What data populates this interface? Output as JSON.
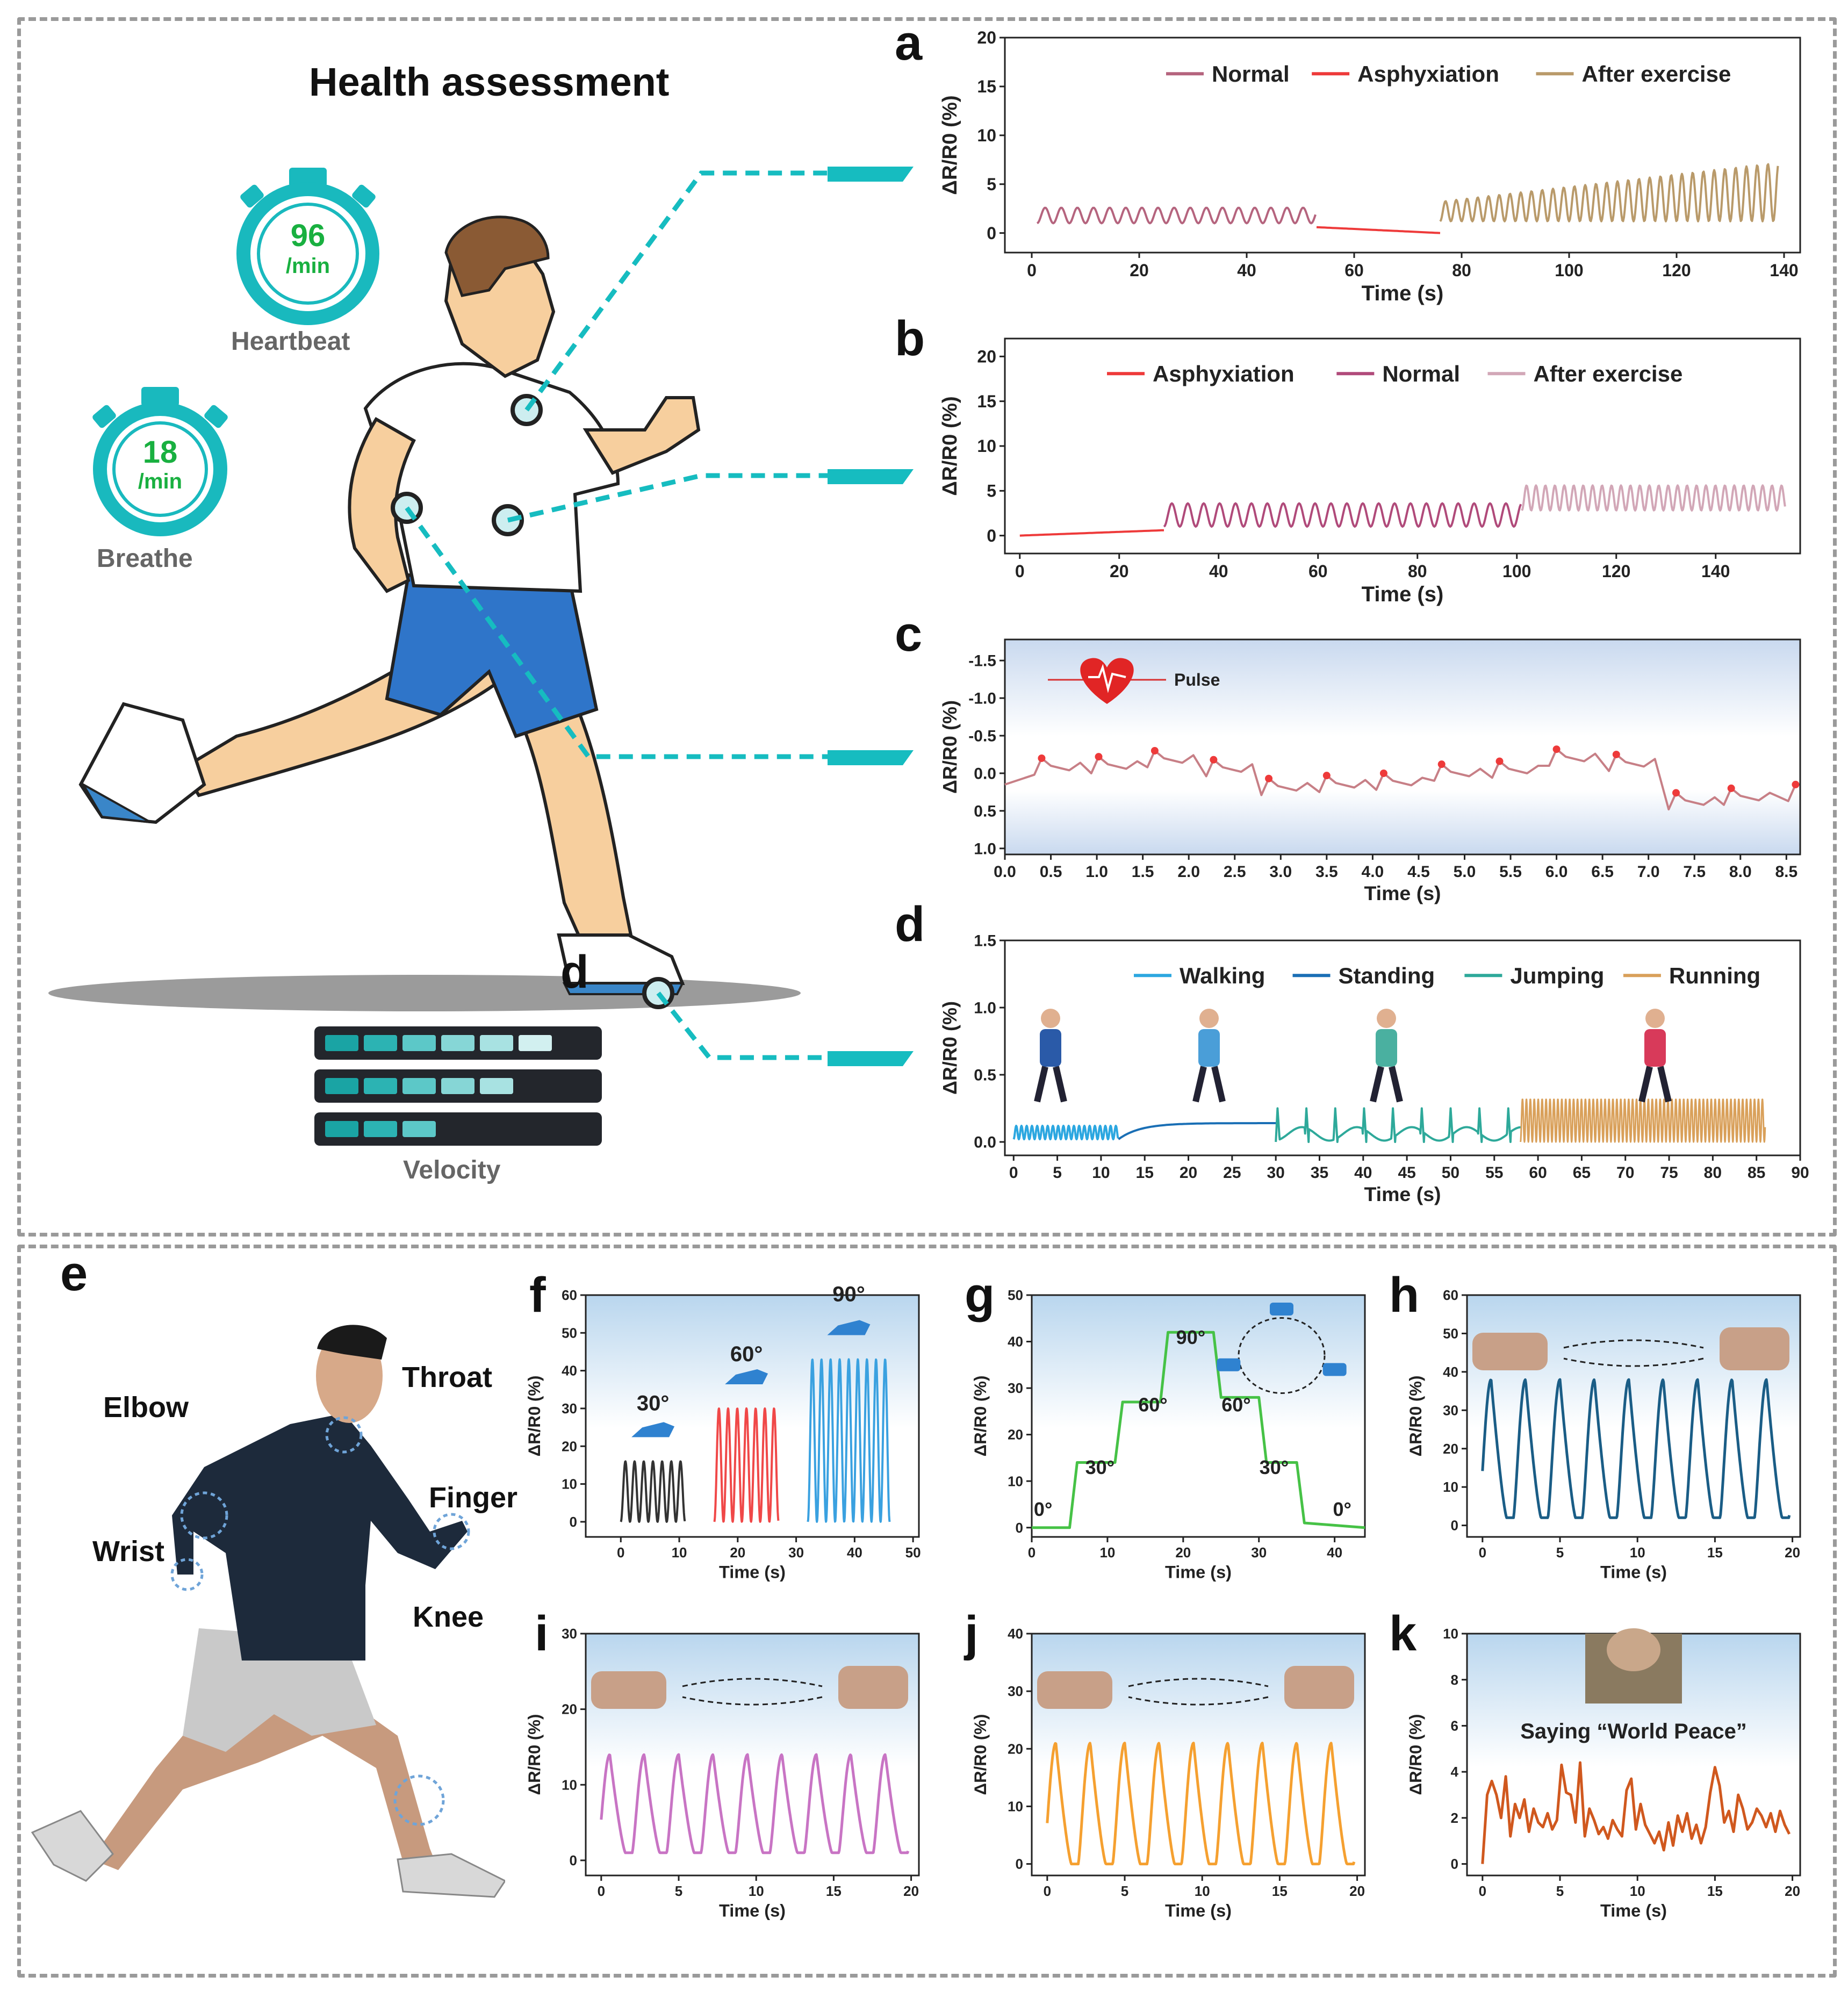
{
  "panel_letters": [
    "a",
    "b",
    "c",
    "d",
    "e",
    "f",
    "g",
    "h",
    "i",
    "j",
    "k"
  ],
  "top_illustration": {
    "title": "Health assessment",
    "heartbeat": {
      "value": "96",
      "unit": "/min",
      "label": "Heartbeat"
    },
    "breathe": {
      "value": "18",
      "unit": "/min",
      "label": "Breathe"
    },
    "velocity_label": "Velocity",
    "foot_marker": "d",
    "velocity_bars": [
      6,
      5,
      3
    ]
  },
  "body_parts": {
    "elbow": "Elbow",
    "throat": "Throat",
    "finger": "Finger",
    "wrist": "Wrist",
    "knee": "Knee"
  },
  "colors": {
    "normal": "#b5647e",
    "asphyxiation": "#ee3a3a",
    "after_exercise": "#b99a6a",
    "normal_b": "#b04a7a",
    "after_exercise_b": "#d2a7b7",
    "teal": "#16bcc0",
    "walking": "#2ca7e0",
    "standing": "#1a6fb5",
    "jumping": "#2ea99a",
    "running": "#d9a05a"
  },
  "chart_data": [
    {
      "id": "a",
      "type": "line",
      "xlabel": "Time (s)",
      "ylabel": "ΔR/R0 (%)",
      "xlim": [
        -5,
        143
      ],
      "ylim": [
        -2,
        20
      ],
      "xticks": [
        "0",
        "20",
        "40",
        "60",
        "80",
        "100",
        "120",
        "140"
      ],
      "yticks": [
        "0",
        "5",
        "10",
        "15",
        "20"
      ],
      "legend": [
        "Normal",
        "Asphyxiation",
        "After exercise"
      ],
      "series": [
        {
          "name": "Normal",
          "segment": [
            1,
            53
          ],
          "baseline": 1.0,
          "amplitude": 1.6,
          "period": 3.0
        },
        {
          "name": "Asphyxiation",
          "segment": [
            53,
            76
          ],
          "start": 0.6,
          "end": 0.0
        },
        {
          "name": "After exercise",
          "segment": [
            76,
            139
          ],
          "baseline": 1.2,
          "amplitude_start": 2.0,
          "amplitude_end": 6.0,
          "period": 2.0
        }
      ]
    },
    {
      "id": "b",
      "type": "line",
      "xlabel": "Time (s)",
      "ylabel": "ΔR/R0 (%)",
      "xlim": [
        -3,
        157
      ],
      "ylim": [
        -2,
        22
      ],
      "xticks": [
        "0",
        "20",
        "40",
        "60",
        "80",
        "100",
        "120",
        "140"
      ],
      "yticks": [
        "0",
        "5",
        "10",
        "15",
        "20"
      ],
      "legend": [
        "Asphyxiation",
        "Normal",
        "After exercise"
      ],
      "series": [
        {
          "name": "Asphyxiation",
          "segment": [
            0,
            29
          ],
          "start": 0.0,
          "end": 0.6
        },
        {
          "name": "Normal",
          "segment": [
            29,
            101
          ],
          "baseline": 1.0,
          "amplitude": 2.6,
          "period": 3.2
        },
        {
          "name": "After exercise",
          "segment": [
            101,
            154
          ],
          "baseline": 2.8,
          "amplitude": 2.8,
          "period": 1.9
        }
      ]
    },
    {
      "id": "c",
      "type": "line",
      "xlabel": "Time (s)",
      "ylabel": "ΔR/R0 (%)",
      "legend": [
        "Pulse"
      ],
      "xlim": [
        0,
        8.65
      ],
      "ylim": [
        1.08,
        -1.78
      ],
      "xticks": [
        "0.0",
        "0.5",
        "1.0",
        "1.5",
        "2.0",
        "2.5",
        "3.0",
        "3.5",
        "4.0",
        "4.5",
        "5.0",
        "5.5",
        "6.0",
        "6.5",
        "7.0",
        "7.5",
        "8.0",
        "8.5"
      ],
      "yticks": [
        "-1.5",
        "-1.0",
        "-0.5",
        "0.0",
        "0.5",
        "1.0"
      ],
      "peaks": [
        [
          0.4,
          -0.2
        ],
        [
          1.02,
          -0.22
        ],
        [
          1.63,
          -0.3
        ],
        [
          2.27,
          -0.18
        ],
        [
          2.87,
          0.07
        ],
        [
          3.5,
          0.03
        ],
        [
          4.12,
          0.0
        ],
        [
          4.75,
          -0.12
        ],
        [
          5.38,
          -0.16
        ],
        [
          6.0,
          -0.32
        ],
        [
          6.65,
          -0.25
        ],
        [
          7.3,
          0.26
        ],
        [
          7.9,
          0.2
        ],
        [
          8.6,
          0.15
        ]
      ]
    },
    {
      "id": "d",
      "type": "line",
      "xlabel": "Time (s)",
      "ylabel": "ΔR/R0 (%)",
      "xlim": [
        -1,
        90
      ],
      "ylim": [
        -0.1,
        1.5
      ],
      "xticks": [
        "0",
        "5",
        "10",
        "15",
        "20",
        "25",
        "30",
        "35",
        "40",
        "45",
        "50",
        "55",
        "60",
        "65",
        "70",
        "75",
        "80",
        "85",
        "90"
      ],
      "yticks": [
        "0.0",
        "0.5",
        "1.0",
        "1.5"
      ],
      "legend": [
        "Walking",
        "Standing",
        "Jumping",
        "Running"
      ],
      "series": [
        {
          "name": "Walking",
          "segment": [
            0,
            12
          ],
          "baseline": 0.02,
          "amplitude": 0.1,
          "period": 0.6
        },
        {
          "name": "Standing",
          "segment": [
            12,
            30
          ],
          "start": 0.02,
          "end": 0.14
        },
        {
          "name": "Jumping",
          "segment": [
            30,
            58
          ],
          "baseline": 0.0,
          "amplitude": 0.25,
          "period": 3.3
        },
        {
          "name": "Running",
          "segment": [
            58,
            86
          ],
          "baseline": 0.0,
          "amplitude": 0.32,
          "period": 0.45
        }
      ]
    },
    {
      "id": "f",
      "type": "line",
      "xlabel": "Time (s)",
      "ylabel": "ΔR/R0 (%)",
      "xlim": [
        -6,
        51
      ],
      "ylim": [
        -4,
        60
      ],
      "xticks": [
        "0",
        "10",
        "20",
        "30",
        "40",
        "50"
      ],
      "yticks": [
        "0",
        "10",
        "20",
        "30",
        "40",
        "50",
        "60"
      ],
      "annotations": [
        "30°",
        "60°",
        "90°"
      ],
      "series": [
        {
          "name": "30°",
          "segment": [
            0,
            11
          ],
          "amplitude": 16,
          "cycles": 7,
          "color": "#333333"
        },
        {
          "name": "60°",
          "segment": [
            16,
            27
          ],
          "amplitude": 30,
          "cycles": 7,
          "color": "#f04848"
        },
        {
          "name": "90°",
          "segment": [
            32,
            46
          ],
          "amplitude": 43,
          "cycles": 9,
          "color": "#3aa1e0"
        }
      ]
    },
    {
      "id": "g",
      "type": "line",
      "xlabel": "Time (s)",
      "ylabel": "ΔR/R0 (%)",
      "xlim": [
        0,
        44
      ],
      "ylim": [
        -2,
        50
      ],
      "xticks": [
        "0",
        "10",
        "20",
        "30",
        "40"
      ],
      "yticks": [
        "0",
        "10",
        "20",
        "30",
        "40",
        "50"
      ],
      "annotations": [
        "0°",
        "30°",
        "60°",
        "90°",
        "60°",
        "30°",
        "0°"
      ],
      "steps": [
        [
          0,
          0
        ],
        [
          5,
          0
        ],
        [
          6,
          14
        ],
        [
          11,
          14
        ],
        [
          12,
          27
        ],
        [
          17,
          27
        ],
        [
          18,
          42
        ],
        [
          24,
          42
        ],
        [
          25,
          28
        ],
        [
          30,
          28
        ],
        [
          31,
          14
        ],
        [
          35,
          14
        ],
        [
          36,
          1
        ],
        [
          44,
          0
        ]
      ],
      "color": "#46c246"
    },
    {
      "id": "h",
      "type": "line",
      "xlabel": "Time (s)",
      "ylabel": "ΔR/R0 (%)",
      "xlim": [
        -1,
        20.5
      ],
      "ylim": [
        -3,
        60
      ],
      "xticks": [
        "0",
        "5",
        "10",
        "15",
        "20"
      ],
      "yticks": [
        "0",
        "10",
        "20",
        "30",
        "40",
        "50",
        "60"
      ],
      "baseline": 2,
      "amplitude": 36,
      "cycles": 9,
      "color": "#1a5d86"
    },
    {
      "id": "i",
      "type": "line",
      "xlabel": "Time (s)",
      "ylabel": "ΔR/R0 (%)",
      "xlim": [
        -1,
        20.5
      ],
      "ylim": [
        -2,
        30
      ],
      "xticks": [
        "0",
        "5",
        "10",
        "15",
        "20"
      ],
      "yticks": [
        "0",
        "10",
        "20",
        "30"
      ],
      "baseline": 1,
      "amplitude": 13,
      "cycles": 9,
      "color": "#c874c4"
    },
    {
      "id": "j",
      "type": "line",
      "xlabel": "Time (s)",
      "ylabel": "ΔR/R0 (%)",
      "xlim": [
        -1,
        20.5
      ],
      "ylim": [
        -2,
        40
      ],
      "xticks": [
        "0",
        "5",
        "10",
        "15",
        "20"
      ],
      "yticks": [
        "0",
        "10",
        "20",
        "30",
        "40"
      ],
      "baseline": 0,
      "amplitude": 21,
      "cycles": 9,
      "color": "#f5a030"
    },
    {
      "id": "k",
      "type": "line",
      "xlabel": "Time (s)",
      "ylabel": "ΔR/R0 (%)",
      "xlim": [
        -1,
        20.5
      ],
      "ylim": [
        -0.5,
        10
      ],
      "xticks": [
        "0",
        "5",
        "10",
        "15",
        "20"
      ],
      "yticks": [
        "0",
        "2",
        "4",
        "6",
        "8",
        "10"
      ],
      "annotation": "Saying “World Peace”",
      "color": "#d0581e",
      "points": [
        [
          0,
          0
        ],
        [
          0.3,
          3
        ],
        [
          0.6,
          3.6
        ],
        [
          0.9,
          3
        ],
        [
          1.2,
          2
        ],
        [
          1.5,
          3.8
        ],
        [
          1.8,
          1.2
        ],
        [
          2.1,
          2.6
        ],
        [
          2.4,
          2
        ],
        [
          2.7,
          2.8
        ],
        [
          3,
          1.4
        ],
        [
          3.3,
          2.4
        ],
        [
          3.6,
          1.8
        ],
        [
          3.9,
          1.6
        ],
        [
          4.2,
          2.2
        ],
        [
          4.5,
          1.5
        ],
        [
          4.8,
          1.9
        ],
        [
          5.1,
          4.3
        ],
        [
          5.4,
          3.1
        ],
        [
          5.7,
          3
        ],
        [
          6,
          1.8
        ],
        [
          6.3,
          4.4
        ],
        [
          6.6,
          1.2
        ],
        [
          6.9,
          2.4
        ],
        [
          7.2,
          1.9
        ],
        [
          7.5,
          1.3
        ],
        [
          7.8,
          1.6
        ],
        [
          8.1,
          1.1
        ],
        [
          8.4,
          1.9
        ],
        [
          8.7,
          1.5
        ],
        [
          9,
          1.2
        ],
        [
          9.3,
          3.2
        ],
        [
          9.6,
          3.7
        ],
        [
          9.9,
          1.5
        ],
        [
          10.2,
          2.6
        ],
        [
          10.5,
          1.7
        ],
        [
          10.8,
          1.3
        ],
        [
          11.1,
          0.9
        ],
        [
          11.4,
          1.4
        ],
        [
          11.7,
          0.6
        ],
        [
          12,
          1.8
        ],
        [
          12.3,
          0.8
        ],
        [
          12.6,
          2.1
        ],
        [
          12.9,
          1.4
        ],
        [
          13.2,
          2.2
        ],
        [
          13.5,
          1.1
        ],
        [
          13.8,
          1.7
        ],
        [
          14.1,
          0.9
        ],
        [
          14.4,
          1.6
        ],
        [
          14.7,
          3.1
        ],
        [
          15,
          4.2
        ],
        [
          15.3,
          3.4
        ],
        [
          15.6,
          1.8
        ],
        [
          15.9,
          2.3
        ],
        [
          16.2,
          1.4
        ],
        [
          16.5,
          3
        ],
        [
          16.8,
          2.4
        ],
        [
          17.1,
          1.5
        ],
        [
          17.4,
          1.8
        ],
        [
          17.7,
          2.4
        ],
        [
          18,
          2.1
        ],
        [
          18.3,
          1.6
        ],
        [
          18.6,
          2.2
        ],
        [
          18.9,
          1.4
        ],
        [
          19.2,
          2.3
        ],
        [
          19.5,
          1.7
        ],
        [
          19.8,
          1.3
        ]
      ]
    }
  ]
}
